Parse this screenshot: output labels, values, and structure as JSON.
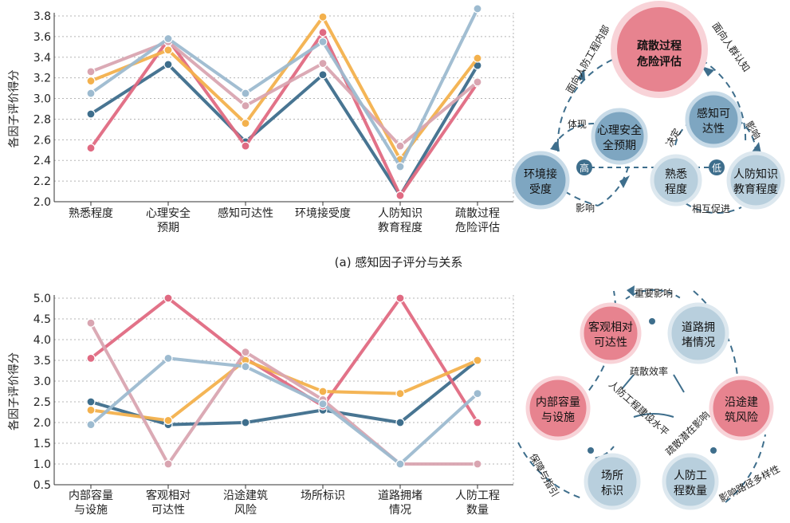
{
  "chart_data": [
    {
      "type": "line",
      "ylabel": "各因子评价得分",
      "ylim": [
        2.0,
        3.8
      ],
      "yticks": [
        "2.0",
        "2.2",
        "2.4",
        "2.6",
        "2.8",
        "3.0",
        "3.2",
        "3.4",
        "3.6",
        "3.8"
      ],
      "categories": [
        [
          "熟悉程度"
        ],
        [
          "心理安全",
          "预期"
        ],
        [
          "感知可达性"
        ],
        [
          "环境接受度"
        ],
        [
          "人防知识",
          "教育程度"
        ],
        [
          "疏散过程",
          "危险评估"
        ]
      ],
      "grid": "horizontal dotted",
      "series": [
        {
          "color": "#3e6e8c",
          "values": [
            2.85,
            3.33,
            2.58,
            3.23,
            2.06,
            3.32
          ]
        },
        {
          "color": "#e06a82",
          "values": [
            2.52,
            3.57,
            2.54,
            3.64,
            2.06,
            3.15
          ]
        },
        {
          "color": "#f3b14d",
          "values": [
            3.17,
            3.47,
            2.76,
            3.79,
            2.41,
            3.39
          ]
        },
        {
          "color": "#d9a5b1",
          "values": [
            3.26,
            3.55,
            2.93,
            3.34,
            2.54,
            3.16
          ]
        },
        {
          "color": "#9dbbd0",
          "values": [
            3.05,
            3.58,
            3.05,
            3.55,
            2.34,
            3.87
          ]
        }
      ],
      "caption": "(a) 感知因子评分与关系"
    },
    {
      "type": "line",
      "ylabel": "各因子评价得分",
      "ylim": [
        0.5,
        5.0
      ],
      "yticks": [
        "0.5",
        "1.0",
        "1.5",
        "2.0",
        "2.5",
        "3.0",
        "3.5",
        "4.0",
        "4.5",
        "5.0"
      ],
      "categories": [
        [
          "内部容量",
          "与设施"
        ],
        [
          "客观相对",
          "可达性"
        ],
        [
          "沿途建筑",
          "风险"
        ],
        [
          "场所标识"
        ],
        [
          "道路拥堵",
          "情况"
        ],
        [
          "人防工程",
          "数量"
        ]
      ],
      "grid": "horizontal dotted",
      "series": [
        {
          "color": "#3e6e8c",
          "values": [
            2.5,
            1.95,
            2.0,
            2.3,
            2.0,
            3.5
          ]
        },
        {
          "color": "#e06a82",
          "values": [
            3.55,
            5.0,
            3.55,
            2.4,
            5.0,
            2.0
          ]
        },
        {
          "color": "#f3b14d",
          "values": [
            2.3,
            2.05,
            3.5,
            2.75,
            2.7,
            3.5
          ]
        },
        {
          "color": "#d9a5b1",
          "values": [
            4.4,
            1.0,
            3.7,
            2.55,
            1.0,
            1.0
          ]
        },
        {
          "color": "#9dbbd0",
          "values": [
            1.95,
            3.55,
            3.35,
            2.45,
            1.0,
            2.7
          ]
        }
      ]
    }
  ],
  "diagram_a": {
    "center": [
      "疏散过程",
      "危险评估"
    ],
    "n_psych": [
      "心理安全",
      "全预期"
    ],
    "n_env": [
      "环境接",
      "受度"
    ],
    "n_fam": [
      "熟悉",
      "程度"
    ],
    "n_acc": [
      "感知可",
      "达性"
    ],
    "n_edu": [
      "人防知识",
      "教育程度"
    ],
    "high": "高",
    "low": "低",
    "lbl_inner": "面向人防工程内部",
    "lbl_crowd": "面向人群认知",
    "lbl_tixian": "体现",
    "lbl_yingxiang1": "影响",
    "lbl_yingxiang2": "影响",
    "lbl_jueding": "决定",
    "lbl_huxiang": "相互促进"
  },
  "diagram_b": {
    "n_obj": [
      "客观相对",
      "可达性"
    ],
    "n_road": [
      "道路拥",
      "堵情况"
    ],
    "n_inner": [
      "内部容量",
      "与设施"
    ],
    "n_risk": [
      "沿途建",
      "筑风险"
    ],
    "n_sign": [
      "场所",
      "标识"
    ],
    "n_count": [
      "人防工",
      "程数量"
    ],
    "lbl_zhongyao": "重要影响",
    "lbl_shusan": "疏散效率",
    "lbl_renfang": "人防工程建设水平",
    "lbl_qianzai": "疏散潜在影响",
    "lbl_baozhang": "保障与指引",
    "lbl_duoyang": "影响路径多样性"
  }
}
